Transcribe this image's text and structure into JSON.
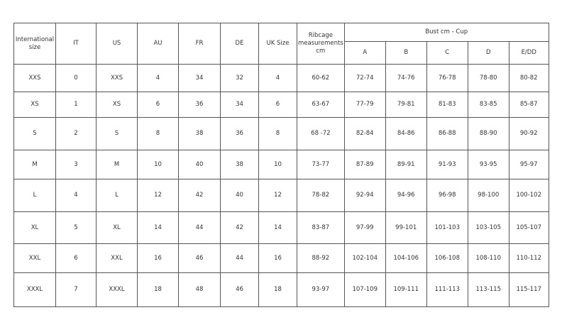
{
  "headers": {
    "international": "International size",
    "it": "IT",
    "us": "US",
    "au": "AU",
    "fr": "FR",
    "de": "DE",
    "uk": "UK Size",
    "ribcage": "Ribcage measurements cm",
    "bust_group": "Bust cm - Cup",
    "cups": [
      "A",
      "B",
      "C",
      "D",
      "E/DD"
    ]
  },
  "rows": [
    [
      "XXS",
      "0",
      "XXS",
      "4",
      "34",
      "32",
      "4",
      "60-62",
      "72-74",
      "74-76",
      "76-78",
      "78-80",
      "80-82"
    ],
    [
      "XS",
      "1",
      "XS",
      "6",
      "36",
      "34",
      "6",
      "63-67",
      "77-79",
      "79-81",
      "81-83",
      "83-85",
      "85-87"
    ],
    [
      "S",
      "2",
      "S",
      "8",
      "38",
      "36",
      "8",
      "68 -72",
      "82-84",
      "84-86",
      "86-88",
      "88-90",
      "90-92"
    ],
    [
      "M",
      "3",
      "M",
      "10",
      "40",
      "38",
      "10",
      "73-77",
      "87-89",
      "89-91",
      "91-93",
      "93-95",
      "95-97"
    ],
    [
      "L",
      "4",
      "L",
      "12",
      "42",
      "40",
      "12",
      "78-82",
      "92-94",
      "94-96",
      "96-98",
      "98-100",
      "100-102"
    ],
    [
      "XL",
      "5",
      "XL",
      "14",
      "44",
      "42",
      "14",
      "83-87",
      "97-99",
      "99-101",
      "101-103",
      "103-105",
      "105-107"
    ],
    [
      "XXL",
      "6",
      "XXL",
      "16",
      "46",
      "44",
      "16",
      "88-92",
      "102-104",
      "104-106",
      "106-108",
      "108-110",
      "110-112"
    ],
    [
      "XXXL",
      "7",
      "XXXL",
      "18",
      "48",
      "46",
      "18",
      "93-97",
      "107-109",
      "109-111",
      "111-113",
      "113-115",
      "115-117"
    ]
  ]
}
